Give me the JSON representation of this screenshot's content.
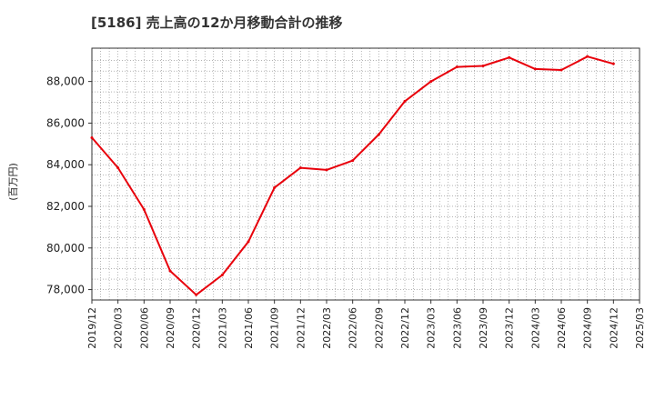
{
  "chart_data": {
    "type": "line",
    "title": "[5186]  売上高の12か月移動合計の推移",
    "ylabel": "(百万円)",
    "xlabel": "",
    "ylim": [
      77500,
      89600
    ],
    "y_ticks": [
      78000,
      80000,
      82000,
      84000,
      86000,
      88000
    ],
    "y_tick_labels": [
      "78,000",
      "80,000",
      "82,000",
      "84,000",
      "86,000",
      "88,000"
    ],
    "x_tick_labels": [
      "2019/12",
      "2020/03",
      "2020/06",
      "2020/09",
      "2020/12",
      "2021/03",
      "2021/06",
      "2021/09",
      "2021/12",
      "2022/03",
      "2022/06",
      "2022/09",
      "2022/12",
      "2023/03",
      "2023/06",
      "2023/09",
      "2023/12",
      "2024/03",
      "2024/06",
      "2024/09",
      "2024/12",
      "2025/03"
    ],
    "grid": true,
    "series": [
      {
        "name": "売上高の12か月移動合計",
        "color": "#e8000b",
        "x": [
          "2019/12",
          "2020/03",
          "2020/06",
          "2020/09",
          "2020/12",
          "2021/03",
          "2021/06",
          "2021/09",
          "2021/12",
          "2022/03",
          "2022/06",
          "2022/09",
          "2022/12",
          "2023/03",
          "2023/06",
          "2023/09",
          "2023/12",
          "2024/03",
          "2024/06",
          "2024/09",
          "2024/12"
        ],
        "values": [
          85300,
          83850,
          81850,
          78900,
          77750,
          78700,
          80300,
          82900,
          83850,
          83750,
          84200,
          85450,
          87050,
          88000,
          88700,
          88750,
          89150,
          88600,
          88550,
          89200,
          88850
        ]
      }
    ]
  }
}
